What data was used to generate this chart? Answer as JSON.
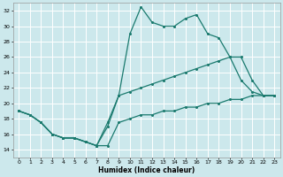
{
  "xlabel": "Humidex (Indice chaleur)",
  "xlim": [
    -0.5,
    23.5
  ],
  "ylim": [
    13,
    33
  ],
  "yticks": [
    14,
    16,
    18,
    20,
    22,
    24,
    26,
    28,
    30,
    32
  ],
  "xticks": [
    0,
    1,
    2,
    3,
    4,
    5,
    6,
    7,
    8,
    9,
    10,
    11,
    12,
    13,
    14,
    15,
    16,
    17,
    18,
    19,
    20,
    21,
    22,
    23
  ],
  "bg_color": "#cce8ec",
  "grid_color": "#ffffff",
  "line_color": "#1a7a6e",
  "line1_x": [
    0,
    1,
    2,
    3,
    4,
    5,
    6,
    7,
    8,
    9,
    10,
    11,
    12,
    13,
    14,
    15,
    16,
    17,
    18,
    19,
    20,
    21,
    22,
    23
  ],
  "line1_y": [
    19.0,
    18.5,
    17.5,
    16.0,
    15.5,
    15.5,
    15.0,
    14.5,
    14.5,
    17.5,
    18.0,
    18.5,
    18.5,
    19.0,
    19.0,
    19.5,
    19.5,
    20.0,
    20.0,
    20.5,
    20.5,
    21.0,
    21.0,
    21.0
  ],
  "line2_x": [
    0,
    1,
    2,
    3,
    4,
    5,
    6,
    7,
    8,
    9,
    10,
    11,
    12,
    13,
    14,
    15,
    16,
    17,
    18,
    19,
    20,
    21,
    22,
    23
  ],
  "line2_y": [
    19.0,
    18.5,
    17.5,
    16.0,
    15.5,
    15.5,
    15.0,
    14.5,
    17.5,
    21.0,
    29.0,
    32.5,
    30.5,
    30.0,
    30.0,
    31.0,
    31.5,
    29.0,
    28.5,
    26.0,
    23.0,
    21.5,
    21.0,
    21.0
  ],
  "line3_x": [
    0,
    1,
    2,
    3,
    4,
    5,
    6,
    7,
    8,
    9,
    10,
    11,
    12,
    13,
    14,
    15,
    16,
    17,
    18,
    19,
    20,
    21,
    22,
    23
  ],
  "line3_y": [
    19.0,
    18.5,
    17.5,
    16.0,
    15.5,
    15.5,
    15.0,
    14.5,
    17.0,
    21.0,
    21.5,
    22.0,
    22.5,
    23.0,
    23.5,
    24.0,
    24.5,
    25.0,
    25.5,
    26.0,
    26.0,
    23.0,
    21.0,
    21.0
  ]
}
